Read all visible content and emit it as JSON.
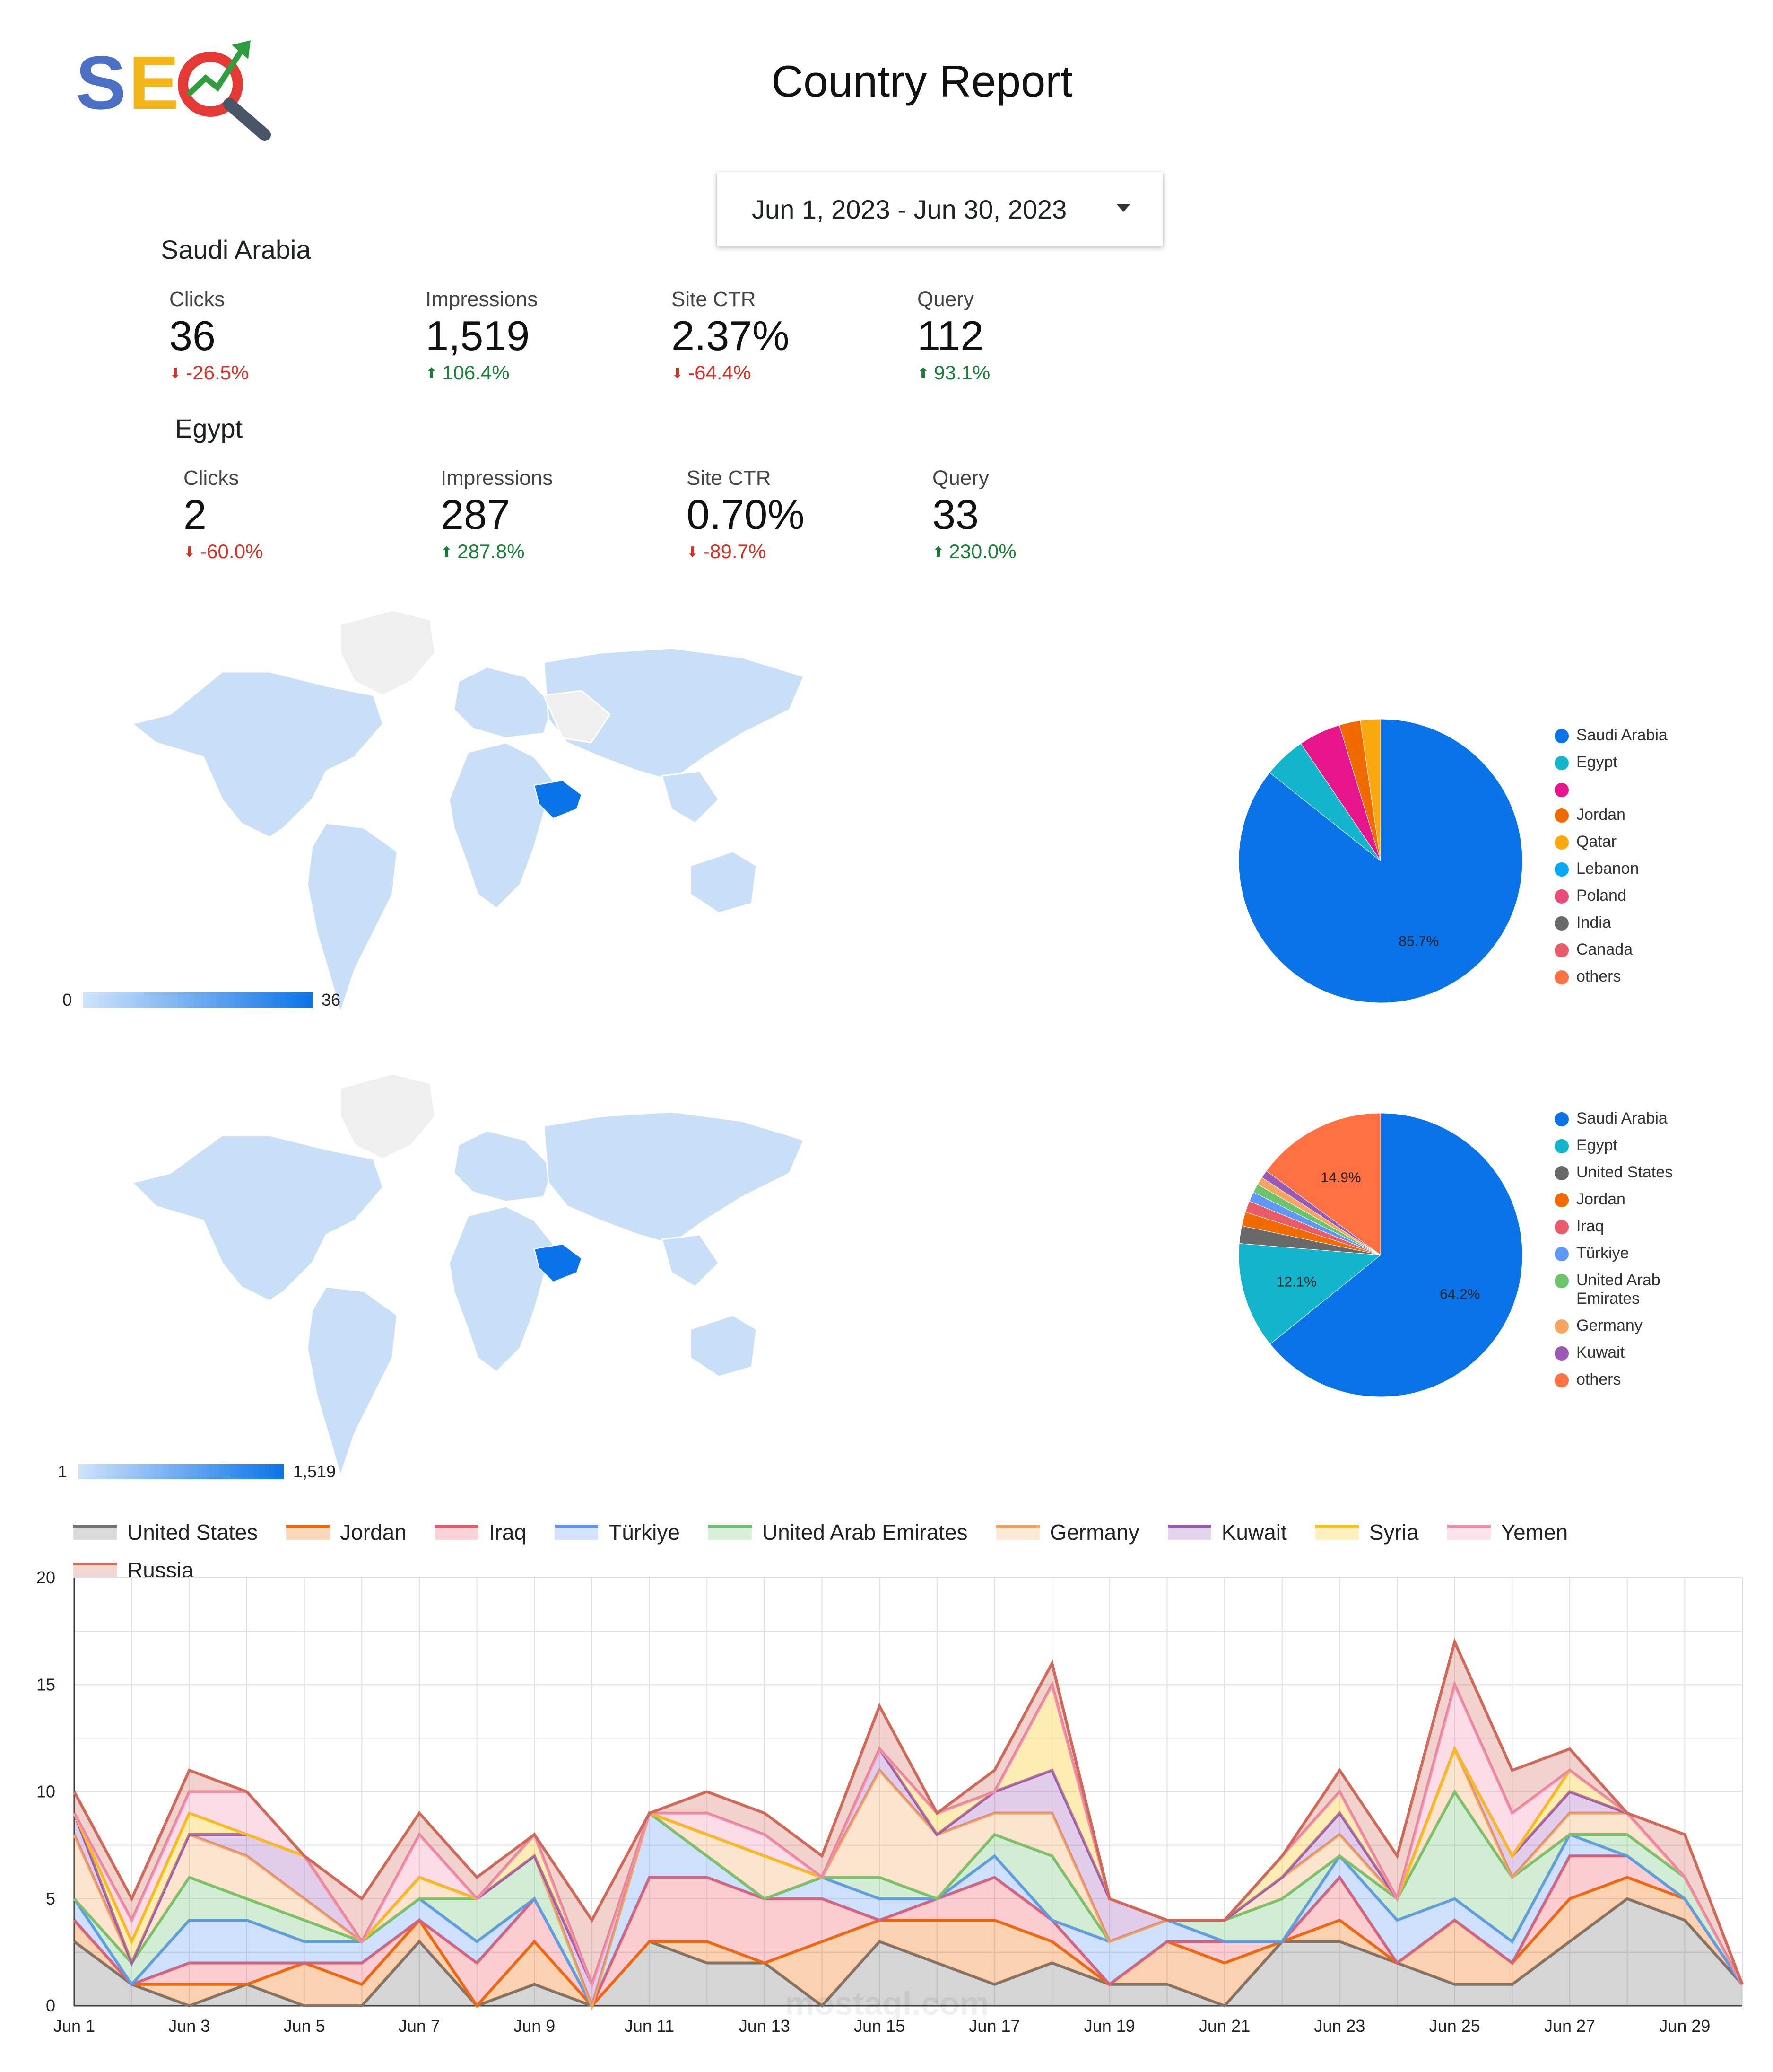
{
  "header": {
    "logo_text": "SEO",
    "title": "Country Report",
    "date_range": "Jun 1, 2023 - Jun 30, 2023"
  },
  "scorecards": [
    {
      "country": "Saudi Arabia",
      "metrics": [
        {
          "label": "Clicks",
          "value": "36",
          "delta": "-26.5%",
          "direction": "down"
        },
        {
          "label": "Impressions",
          "value": "1,519",
          "delta": "106.4%",
          "direction": "up"
        },
        {
          "label": "Site CTR",
          "value": "2.37%",
          "delta": "-64.4%",
          "direction": "down"
        },
        {
          "label": "Query",
          "value": "112",
          "delta": "93.1%",
          "direction": "up"
        }
      ]
    },
    {
      "country": "Egypt",
      "metrics": [
        {
          "label": "Clicks",
          "value": "2",
          "delta": "-60.0%",
          "direction": "down"
        },
        {
          "label": "Impressions",
          "value": "287",
          "delta": "287.8%",
          "direction": "up"
        },
        {
          "label": "Site CTR",
          "value": "0.70%",
          "delta": "-89.7%",
          "direction": "down"
        },
        {
          "label": "Query",
          "value": "33",
          "delta": "230.0%",
          "direction": "up"
        }
      ]
    }
  ],
  "maps": [
    {
      "scale_min": "0",
      "scale_max": "36",
      "highlight": "Saudi Arabia"
    },
    {
      "scale_min": "1",
      "scale_max": "1,519",
      "highlight": "Saudi Arabia"
    }
  ],
  "chart_data": [
    {
      "type": "pie",
      "slices": [
        {
          "label": "Saudi Arabia",
          "value": 85.7,
          "color": "#0a73e8"
        },
        {
          "label": "Egypt",
          "value": 4.8,
          "color": "#12b5cb"
        },
        {
          "label": "",
          "value": 4.8,
          "color": "#e8168d"
        },
        {
          "label": "Jordan",
          "value": 2.4,
          "color": "#f06a00"
        },
        {
          "label": "Qatar",
          "value": 2.3,
          "color": "#f9a80f"
        },
        {
          "label": "Lebanon",
          "value": 0,
          "color": "#03a9f4"
        },
        {
          "label": "Poland",
          "value": 0,
          "color": "#ea4c7a"
        },
        {
          "label": "India",
          "value": 0,
          "color": "#696969"
        },
        {
          "label": "Canada",
          "value": 0,
          "color": "#ea5b6a"
        },
        {
          "label": "others",
          "value": 0,
          "color": "#ff7043"
        }
      ],
      "data_labels": [
        "85.7%"
      ]
    },
    {
      "type": "pie",
      "slices": [
        {
          "label": "Saudi Arabia",
          "value": 64.2,
          "color": "#0a73e8"
        },
        {
          "label": "Egypt",
          "value": 12.1,
          "color": "#12b5cb"
        },
        {
          "label": "United States",
          "value": 2.0,
          "color": "#696969"
        },
        {
          "label": "Jordan",
          "value": 1.6,
          "color": "#f06a00"
        },
        {
          "label": "Iraq",
          "value": 1.3,
          "color": "#ea5b6a"
        },
        {
          "label": "Türkiye",
          "value": 1.1,
          "color": "#5e97f6"
        },
        {
          "label": "United Arab Emirates",
          "value": 1.0,
          "color": "#6bc46c"
        },
        {
          "label": "Germany",
          "value": 0.9,
          "color": "#f6a560"
        },
        {
          "label": "Kuwait",
          "value": 0.9,
          "color": "#9b59b6"
        },
        {
          "label": "others",
          "value": 14.9,
          "color": "#ff7043"
        }
      ],
      "data_labels": [
        "64.2%",
        "12.1%",
        "14.9%"
      ]
    },
    {
      "type": "area",
      "stacked": true,
      "x": [
        "Jun 1",
        "Jun 2",
        "Jun 3",
        "Jun 4",
        "Jun 5",
        "Jun 6",
        "Jun 7",
        "Jun 8",
        "Jun 9",
        "Jun 10",
        "Jun 11",
        "Jun 12",
        "Jun 13",
        "Jun 14",
        "Jun 15",
        "Jun 16",
        "Jun 17",
        "Jun 18",
        "Jun 19",
        "Jun 20",
        "Jun 21",
        "Jun 22",
        "Jun 23",
        "Jun 24",
        "Jun 25",
        "Jun 26",
        "Jun 27",
        "Jun 28",
        "Jun 29",
        "Jun 30"
      ],
      "x_tick_labels": [
        "Jun 1",
        "Jun 3",
        "Jun 5",
        "Jun 7",
        "Jun 9",
        "Jun 11",
        "Jun 13",
        "Jun 15",
        "Jun 17",
        "Jun 19",
        "Jun 21",
        "Jun 23",
        "Jun 25",
        "Jun 27",
        "Jun 29"
      ],
      "ylim": [
        0,
        20
      ],
      "y_ticks": [
        "0",
        "5",
        "10",
        "15",
        "20"
      ],
      "grid": true,
      "legend_position": "top",
      "series": [
        {
          "name": "United States",
          "color": "#757575",
          "values": [
            3,
            1,
            0,
            1,
            0,
            0,
            3,
            0,
            1,
            0,
            3,
            2,
            2,
            0,
            3,
            2,
            1,
            2,
            1,
            1,
            0,
            3,
            3,
            2,
            1,
            1,
            3,
            5,
            4,
            1
          ]
        },
        {
          "name": "Jordan",
          "values": [
            1,
            0,
            1,
            0,
            2,
            1,
            1,
            0,
            2,
            0,
            0,
            1,
            0,
            3,
            1,
            2,
            3,
            1,
            0,
            2,
            2,
            0,
            1,
            0,
            3,
            1,
            2,
            1,
            1,
            0
          ],
          "color": "#f06a00"
        },
        {
          "name": "Iraq",
          "values": [
            0,
            0,
            1,
            1,
            0,
            1,
            0,
            2,
            2,
            0,
            3,
            3,
            3,
            2,
            0,
            1,
            2,
            1,
            0,
            0,
            1,
            0,
            2,
            0,
            0,
            0,
            2,
            1,
            0,
            0
          ],
          "color": "#ea5b6a"
        },
        {
          "name": "Türkiye",
          "values": [
            1,
            0,
            2,
            2,
            1,
            1,
            1,
            1,
            0,
            0,
            3,
            1,
            0,
            1,
            1,
            0,
            1,
            0,
            2,
            1,
            0,
            0,
            1,
            2,
            1,
            1,
            1,
            0,
            0,
            0
          ],
          "color": "#5e97f6"
        },
        {
          "name": "United Arab Emirates",
          "values": [
            0,
            1,
            2,
            1,
            1,
            0,
            0,
            2,
            2,
            0,
            0,
            0,
            0,
            0,
            1,
            0,
            1,
            3,
            0,
            0,
            1,
            2,
            0,
            1,
            5,
            3,
            0,
            1,
            1,
            0
          ],
          "color": "#6bc46c"
        },
        {
          "name": "Germany",
          "values": [
            3,
            0,
            2,
            2,
            1,
            0,
            1,
            0,
            0,
            0,
            0,
            1,
            2,
            0,
            5,
            3,
            1,
            2,
            0,
            0,
            0,
            1,
            1,
            0,
            2,
            0,
            1,
            1,
            0,
            0
          ],
          "color": "#f6a560"
        },
        {
          "name": "Kuwait",
          "values": [
            1,
            0,
            0,
            1,
            2,
            0,
            0,
            0,
            0,
            1,
            0,
            0,
            0,
            0,
            1,
            0,
            1,
            2,
            2,
            0,
            0,
            0,
            1,
            0,
            0,
            1,
            1,
            0,
            0,
            0
          ],
          "color": "#9b59b6"
        },
        {
          "name": "Syria",
          "values": [
            0,
            1,
            1,
            0,
            0,
            0,
            0,
            0,
            1,
            0,
            0,
            0,
            0,
            0,
            0,
            1,
            0,
            4,
            0,
            0,
            0,
            1,
            1,
            0,
            0,
            0,
            1,
            0,
            0,
            0
          ],
          "color": "#f9c20a"
        },
        {
          "name": "Yemen",
          "values": [
            0,
            1,
            1,
            2,
            0,
            0,
            2,
            0,
            0,
            0,
            0,
            1,
            1,
            0,
            0,
            0,
            0,
            0,
            0,
            0,
            0,
            0,
            0,
            0,
            3,
            2,
            0,
            0,
            0,
            0
          ],
          "color": "#f48fb1"
        },
        {
          "name": "Russia",
          "values": [
            1,
            1,
            1,
            0,
            0,
            2,
            1,
            1,
            0,
            3,
            0,
            1,
            1,
            1,
            2,
            0,
            1,
            1,
            0,
            0,
            0,
            0,
            1,
            2,
            2,
            2,
            1,
            0,
            2,
            0
          ],
          "color": "#d0695a"
        }
      ]
    }
  ],
  "watermark": "mostaql.com"
}
